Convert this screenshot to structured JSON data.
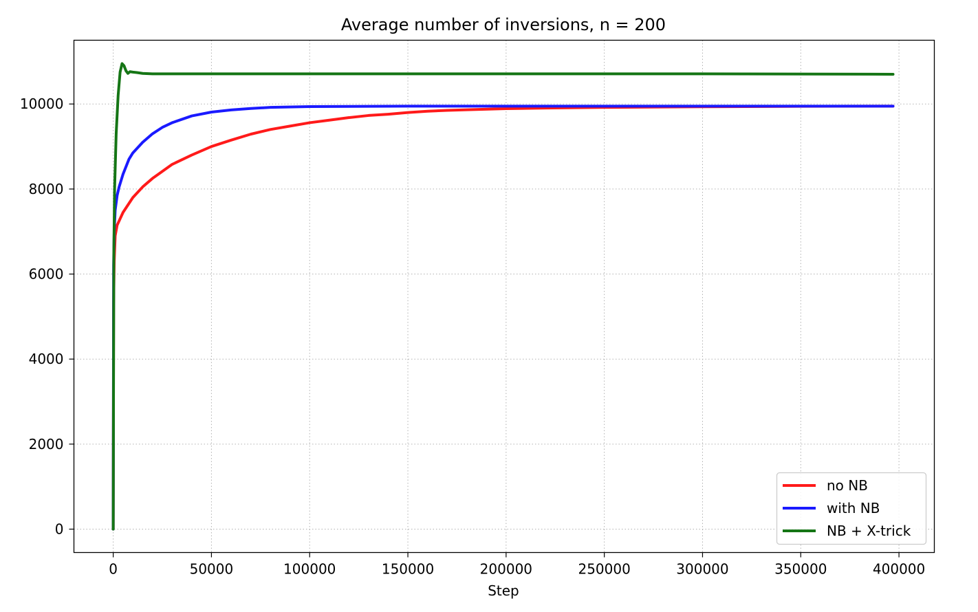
{
  "chart_data": {
    "type": "line",
    "title": "Average number of inversions, n = 200",
    "xlabel": "Step",
    "ylabel": "",
    "xlim": [
      -20000,
      418000
    ],
    "ylim": [
      -550,
      11500
    ],
    "xticks": [
      0,
      50000,
      100000,
      150000,
      200000,
      250000,
      300000,
      350000,
      400000
    ],
    "yticks": [
      0,
      2000,
      4000,
      6000,
      8000,
      10000
    ],
    "grid": true,
    "legend_position": "lower-right",
    "series": [
      {
        "name": "no NB",
        "color": "#ff1a1a",
        "points": [
          [
            0,
            0
          ],
          [
            200,
            5300
          ],
          [
            500,
            6300
          ],
          [
            1000,
            6900
          ],
          [
            2000,
            7150
          ],
          [
            5000,
            7450
          ],
          [
            10000,
            7800
          ],
          [
            15000,
            8050
          ],
          [
            20000,
            8250
          ],
          [
            30000,
            8580
          ],
          [
            40000,
            8800
          ],
          [
            50000,
            9000
          ],
          [
            60000,
            9150
          ],
          [
            70000,
            9290
          ],
          [
            80000,
            9400
          ],
          [
            90000,
            9480
          ],
          [
            100000,
            9560
          ],
          [
            110000,
            9620
          ],
          [
            120000,
            9680
          ],
          [
            130000,
            9730
          ],
          [
            140000,
            9760
          ],
          [
            150000,
            9800
          ],
          [
            160000,
            9830
          ],
          [
            170000,
            9850
          ],
          [
            180000,
            9865
          ],
          [
            200000,
            9890
          ],
          [
            220000,
            9905
          ],
          [
            250000,
            9920
          ],
          [
            300000,
            9935
          ],
          [
            350000,
            9945
          ],
          [
            397000,
            9950
          ]
        ]
      },
      {
        "name": "with NB",
        "color": "#1a1aff",
        "points": [
          [
            0,
            0
          ],
          [
            200,
            6200
          ],
          [
            500,
            7000
          ],
          [
            1000,
            7500
          ],
          [
            2000,
            7850
          ],
          [
            3000,
            8050
          ],
          [
            5000,
            8350
          ],
          [
            8000,
            8700
          ],
          [
            10000,
            8850
          ],
          [
            15000,
            9100
          ],
          [
            20000,
            9300
          ],
          [
            25000,
            9450
          ],
          [
            30000,
            9560
          ],
          [
            40000,
            9720
          ],
          [
            50000,
            9810
          ],
          [
            60000,
            9860
          ],
          [
            70000,
            9895
          ],
          [
            80000,
            9920
          ],
          [
            100000,
            9940
          ],
          [
            150000,
            9950
          ],
          [
            200000,
            9950
          ],
          [
            300000,
            9950
          ],
          [
            397000,
            9950
          ]
        ]
      },
      {
        "name": "NB + X-trick",
        "color": "#157515",
        "points": [
          [
            0,
            0
          ],
          [
            300,
            6500
          ],
          [
            700,
            8000
          ],
          [
            1500,
            9300
          ],
          [
            2500,
            10200
          ],
          [
            3500,
            10750
          ],
          [
            4500,
            10950
          ],
          [
            5500,
            10900
          ],
          [
            6500,
            10780
          ],
          [
            7500,
            10720
          ],
          [
            8500,
            10760
          ],
          [
            10000,
            10750
          ],
          [
            12000,
            10740
          ],
          [
            15000,
            10720
          ],
          [
            20000,
            10710
          ],
          [
            50000,
            10710
          ],
          [
            100000,
            10710
          ],
          [
            200000,
            10710
          ],
          [
            300000,
            10710
          ],
          [
            397000,
            10700
          ]
        ]
      }
    ]
  }
}
